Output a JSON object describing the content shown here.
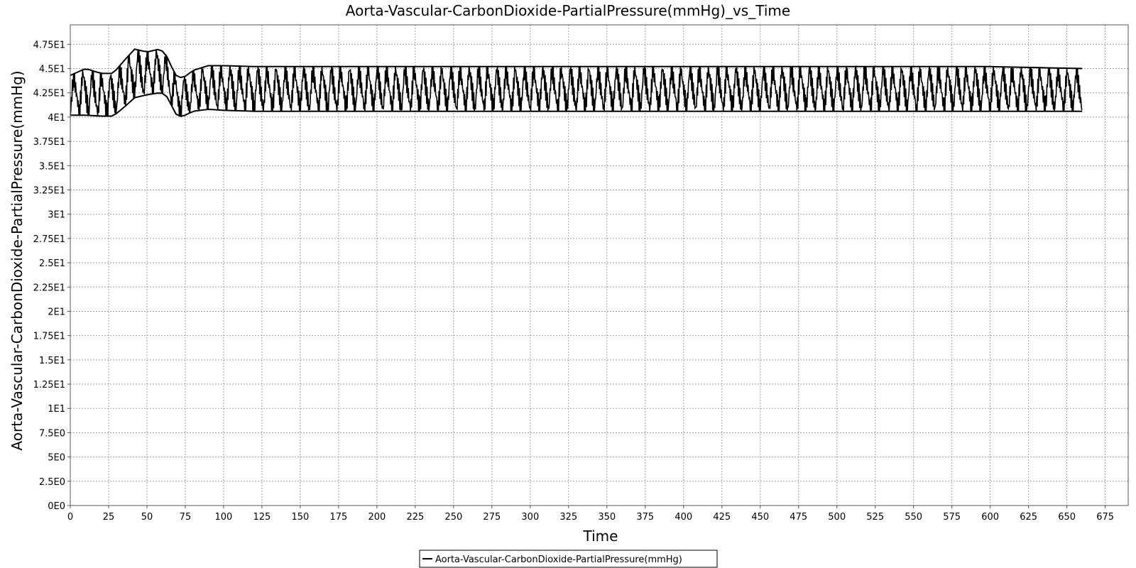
{
  "chart_data": {
    "type": "line",
    "title": "Aorta-Vascular-CarbonDioxide-PartialPressure(mmHg)_vs_Time",
    "xlabel": "Time",
    "ylabel": "Aorta-Vascular-CarbonDioxide-PartialPressure(mmHg)",
    "xlim": [
      0,
      690
    ],
    "ylim": [
      0,
      49.5
    ],
    "x_ticks": [
      0,
      25,
      50,
      75,
      100,
      125,
      150,
      175,
      200,
      225,
      250,
      275,
      300,
      325,
      350,
      375,
      400,
      425,
      450,
      475,
      500,
      525,
      550,
      575,
      600,
      625,
      650,
      675
    ],
    "x_tick_labels": [
      "0",
      "25",
      "50",
      "75",
      "100",
      "125",
      "150",
      "175",
      "200",
      "225",
      "250",
      "275",
      "300",
      "325",
      "350",
      "375",
      "400",
      "425",
      "450",
      "475",
      "500",
      "525",
      "550",
      "575",
      "600",
      "625",
      "650",
      "675"
    ],
    "y_ticks": [
      0,
      2.5,
      5,
      7.5,
      10,
      12.5,
      15,
      17.5,
      20,
      22.5,
      25,
      27.5,
      30,
      32.5,
      35,
      37.5,
      40,
      42.5,
      45,
      47.5
    ],
    "y_tick_labels": [
      "0E0",
      "2.5E0",
      "5E0",
      "7.5E0",
      "1E1",
      "1.25E1",
      "1.5E1",
      "1.75E1",
      "2E1",
      "2.25E1",
      "2.5E1",
      "2.75E1",
      "3E1",
      "3.25E1",
      "3.5E1",
      "3.75E1",
      "4E1",
      "4.25E1",
      "4.5E1",
      "4.75E1"
    ],
    "grid": true,
    "legend_position": "bottom-center",
    "series": [
      {
        "name": "Aorta-Vascular-CarbonDioxide-PartialPressure(mmHg)",
        "color": "#000000",
        "oscillation_envelope": {
          "x": [
            0,
            10,
            20,
            28,
            35,
            42,
            50,
            58,
            62,
            65,
            70,
            75,
            80,
            90,
            100,
            120,
            150,
            200,
            300,
            400,
            500,
            600,
            660
          ],
          "lower": [
            40.2,
            40.2,
            40.1,
            40.1,
            41.0,
            42.0,
            42.3,
            42.5,
            42.4,
            41.5,
            40.0,
            40.2,
            40.6,
            40.8,
            40.7,
            40.6,
            40.6,
            40.6,
            40.6,
            40.6,
            40.6,
            40.6,
            40.6
          ],
          "upper": [
            44.3,
            45.0,
            44.5,
            44.5,
            45.8,
            47.0,
            46.7,
            47.0,
            46.6,
            45.5,
            44.0,
            44.2,
            44.8,
            45.3,
            45.3,
            45.2,
            45.2,
            45.2,
            45.2,
            45.2,
            45.2,
            45.2,
            45.0
          ],
          "period": 6.0
        }
      }
    ]
  },
  "legend": {
    "label": "Aorta-Vascular-CarbonDioxide-PartialPressure(mmHg)"
  }
}
